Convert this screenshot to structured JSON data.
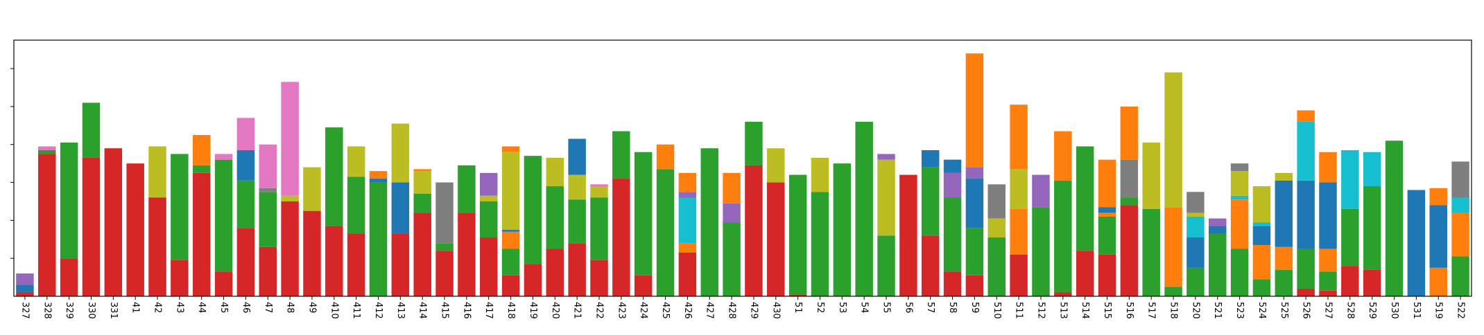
{
  "chart_data": {
    "type": "bar",
    "stacked": true,
    "categories": [
      "327",
      "328",
      "329",
      "330",
      "331",
      "41",
      "42",
      "43",
      "44",
      "45",
      "46",
      "47",
      "48",
      "49",
      "410",
      "411",
      "412",
      "413",
      "414",
      "415",
      "416",
      "417",
      "418",
      "419",
      "420",
      "421",
      "422",
      "423",
      "424",
      "425",
      "426",
      "427",
      "428",
      "429",
      "430",
      "51",
      "52",
      "53",
      "54",
      "55",
      "56",
      "57",
      "58",
      "59",
      "510",
      "511",
      "512",
      "513",
      "514",
      "515",
      "516",
      "517",
      "518",
      "520",
      "521",
      "523",
      "524",
      "525",
      "526",
      "527",
      "528",
      "529",
      "530",
      "531",
      "519",
      "522"
    ],
    "ylim": [
      0,
      135
    ],
    "grid": false,
    "colors": [
      "#d62728",
      "#2ca02c",
      "#1f77b4",
      "#ff7f0e",
      "#bcbd22",
      "#17becf",
      "#9467bd",
      "#e377c2",
      "#7f7f7f"
    ],
    "bars": [
      {
        "segments": [
          [
            2,
            "#d62728"
          ],
          [
            4,
            "#1f77b4"
          ],
          [
            6,
            "#9467bd"
          ]
        ]
      },
      {
        "segments": [
          [
            75,
            "#d62728"
          ],
          [
            2,
            "#2ca02c"
          ],
          [
            2,
            "#e377c2"
          ]
        ]
      },
      {
        "segments": [
          [
            20,
            "#d62728"
          ],
          [
            61,
            "#2ca02c"
          ]
        ]
      },
      {
        "segments": [
          [
            73,
            "#d62728"
          ],
          [
            29,
            "#2ca02c"
          ]
        ]
      },
      {
        "segments": [
          [
            78,
            "#d62728"
          ]
        ]
      },
      {
        "segments": [
          [
            70,
            "#d62728"
          ]
        ]
      },
      {
        "segments": [
          [
            52,
            "#d62728"
          ],
          [
            27,
            "#bcbd22"
          ]
        ]
      },
      {
        "segments": [
          [
            19,
            "#d62728"
          ],
          [
            56,
            "#2ca02c"
          ]
        ]
      },
      {
        "segments": [
          [
            65,
            "#d62728"
          ],
          [
            4,
            "#2ca02c"
          ],
          [
            16,
            "#ff7f0e"
          ]
        ]
      },
      {
        "segments": [
          [
            13,
            "#d62728"
          ],
          [
            59,
            "#2ca02c"
          ],
          [
            3,
            "#e377c2"
          ]
        ]
      },
      {
        "segments": [
          [
            36,
            "#d62728"
          ],
          [
            25,
            "#2ca02c"
          ],
          [
            16,
            "#1f77b4"
          ],
          [
            17,
            "#e377c2"
          ]
        ]
      },
      {
        "segments": [
          [
            26,
            "#d62728"
          ],
          [
            29,
            "#2ca02c"
          ],
          [
            2,
            "#7f7f7f"
          ],
          [
            23,
            "#e377c2"
          ]
        ]
      },
      {
        "segments": [
          [
            50,
            "#d62728"
          ],
          [
            3,
            "#bcbd22"
          ],
          [
            60,
            "#e377c2"
          ]
        ]
      },
      {
        "segments": [
          [
            45,
            "#d62728"
          ],
          [
            23,
            "#bcbd22"
          ]
        ]
      },
      {
        "segments": [
          [
            37,
            "#d62728"
          ],
          [
            52,
            "#2ca02c"
          ]
        ]
      },
      {
        "segments": [
          [
            33,
            "#d62728"
          ],
          [
            30,
            "#2ca02c"
          ],
          [
            16,
            "#bcbd22"
          ]
        ]
      },
      {
        "segments": [
          [
            60,
            "#2ca02c"
          ],
          [
            2,
            "#1f77b4"
          ],
          [
            4,
            "#ff7f0e"
          ]
        ]
      },
      {
        "segments": [
          [
            33,
            "#d62728"
          ],
          [
            27,
            "#1f77b4"
          ],
          [
            31,
            "#bcbd22"
          ]
        ]
      },
      {
        "segments": [
          [
            44,
            "#d62728"
          ],
          [
            10,
            "#2ca02c"
          ],
          [
            12,
            "#bcbd22"
          ],
          [
            1,
            "#ff7f0e"
          ]
        ]
      },
      {
        "segments": [
          [
            24,
            "#d62728"
          ],
          [
            4,
            "#2ca02c"
          ],
          [
            32,
            "#7f7f7f"
          ]
        ]
      },
      {
        "segments": [
          [
            44,
            "#d62728"
          ],
          [
            25,
            "#2ca02c"
          ]
        ]
      },
      {
        "segments": [
          [
            31,
            "#d62728"
          ],
          [
            19,
            "#2ca02c"
          ],
          [
            3,
            "#bcbd22"
          ],
          [
            12,
            "#9467bd"
          ]
        ]
      },
      {
        "segments": [
          [
            11,
            "#d62728"
          ],
          [
            14,
            "#2ca02c"
          ],
          [
            9,
            "#ff7f0e"
          ],
          [
            1,
            "#1f77b4"
          ],
          [
            41,
            "#bcbd22"
          ],
          [
            3,
            "#ff7f0e"
          ]
        ]
      },
      {
        "segments": [
          [
            17,
            "#d62728"
          ],
          [
            57,
            "#2ca02c"
          ]
        ]
      },
      {
        "segments": [
          [
            25,
            "#d62728"
          ],
          [
            33,
            "#2ca02c"
          ],
          [
            15,
            "#bcbd22"
          ]
        ]
      },
      {
        "segments": [
          [
            28,
            "#d62728"
          ],
          [
            23,
            "#2ca02c"
          ],
          [
            13,
            "#bcbd22"
          ],
          [
            19,
            "#1f77b4"
          ]
        ]
      },
      {
        "segments": [
          [
            19,
            "#d62728"
          ],
          [
            33,
            "#2ca02c"
          ],
          [
            6,
            "#bcbd22"
          ],
          [
            1,
            "#e377c2"
          ]
        ]
      },
      {
        "segments": [
          [
            62,
            "#d62728"
          ],
          [
            25,
            "#2ca02c"
          ]
        ]
      },
      {
        "segments": [
          [
            11,
            "#d62728"
          ],
          [
            65,
            "#2ca02c"
          ]
        ]
      },
      {
        "segments": [
          [
            67,
            "#2ca02c"
          ],
          [
            13,
            "#ff7f0e"
          ]
        ]
      },
      {
        "segments": [
          [
            23,
            "#d62728"
          ],
          [
            5,
            "#ff7f0e"
          ],
          [
            24,
            "#17becf"
          ],
          [
            3,
            "#9467bd"
          ],
          [
            10,
            "#ff7f0e"
          ]
        ]
      },
      {
        "segments": [
          [
            78,
            "#2ca02c"
          ]
        ]
      },
      {
        "segments": [
          [
            39,
            "#2ca02c"
          ],
          [
            10,
            "#9467bd"
          ],
          [
            16,
            "#ff7f0e"
          ]
        ]
      },
      {
        "segments": [
          [
            69,
            "#d62728"
          ],
          [
            23,
            "#2ca02c"
          ]
        ]
      },
      {
        "segments": [
          [
            60,
            "#d62728"
          ],
          [
            18,
            "#bcbd22"
          ]
        ]
      },
      {
        "segments": [
          [
            1,
            "#d62728"
          ],
          [
            63,
            "#2ca02c"
          ]
        ]
      },
      {
        "segments": [
          [
            55,
            "#2ca02c"
          ],
          [
            18,
            "#bcbd22"
          ]
        ]
      },
      {
        "segments": [
          [
            70,
            "#2ca02c"
          ]
        ]
      },
      {
        "segments": [
          [
            92,
            "#2ca02c"
          ]
        ]
      },
      {
        "segments": [
          [
            32,
            "#2ca02c"
          ],
          [
            40,
            "#bcbd22"
          ],
          [
            3,
            "#9467bd"
          ]
        ]
      },
      {
        "segments": [
          [
            64,
            "#d62728"
          ]
        ]
      },
      {
        "segments": [
          [
            32,
            "#d62728"
          ],
          [
            36,
            "#2ca02c"
          ],
          [
            9,
            "#1f77b4"
          ]
        ]
      },
      {
        "segments": [
          [
            13,
            "#d62728"
          ],
          [
            39,
            "#2ca02c"
          ],
          [
            13,
            "#9467bd"
          ],
          [
            7,
            "#1f77b4"
          ]
        ]
      },
      {
        "segments": [
          [
            11,
            "#d62728"
          ],
          [
            25,
            "#2ca02c"
          ],
          [
            26,
            "#1f77b4"
          ],
          [
            6,
            "#9467bd"
          ],
          [
            60,
            "#ff7f0e"
          ]
        ]
      },
      {
        "segments": [
          [
            31,
            "#2ca02c"
          ],
          [
            10,
            "#bcbd22"
          ],
          [
            18,
            "#7f7f7f"
          ]
        ]
      },
      {
        "segments": [
          [
            22,
            "#d62728"
          ],
          [
            24,
            "#ff7f0e"
          ],
          [
            21,
            "#bcbd22"
          ],
          [
            34,
            "#ff7f0e"
          ]
        ]
      },
      {
        "segments": [
          [
            47,
            "#2ca02c"
          ],
          [
            17,
            "#9467bd"
          ]
        ]
      },
      {
        "segments": [
          [
            2,
            "#d62728"
          ],
          [
            59,
            "#2ca02c"
          ],
          [
            26,
            "#ff7f0e"
          ]
        ]
      },
      {
        "segments": [
          [
            24,
            "#d62728"
          ],
          [
            55,
            "#2ca02c"
          ]
        ]
      },
      {
        "segments": [
          [
            22,
            "#d62728"
          ],
          [
            20,
            "#2ca02c"
          ],
          [
            2,
            "#ff7f0e"
          ],
          [
            3,
            "#1f77b4"
          ],
          [
            25,
            "#ff7f0e"
          ]
        ]
      },
      {
        "segments": [
          [
            48,
            "#d62728"
          ],
          [
            4,
            "#2ca02c"
          ],
          [
            20,
            "#7f7f7f"
          ],
          [
            28,
            "#ff7f0e"
          ]
        ]
      },
      {
        "segments": [
          [
            46,
            "#2ca02c"
          ],
          [
            35,
            "#bcbd22"
          ]
        ]
      },
      {
        "segments": [
          [
            5,
            "#2ca02c"
          ],
          [
            42,
            "#ff7f0e"
          ],
          [
            71,
            "#bcbd22"
          ]
        ]
      },
      {
        "segments": [
          [
            15,
            "#2ca02c"
          ],
          [
            16,
            "#1f77b4"
          ],
          [
            11,
            "#17becf"
          ],
          [
            2,
            "#bcbd22"
          ],
          [
            11,
            "#7f7f7f"
          ]
        ]
      },
      {
        "segments": [
          [
            33,
            "#2ca02c"
          ],
          [
            4,
            "#1f77b4"
          ],
          [
            4,
            "#9467bd"
          ]
        ]
      },
      {
        "segments": [
          [
            25,
            "#2ca02c"
          ],
          [
            26,
            "#ff7f0e"
          ],
          [
            2,
            "#17becf"
          ],
          [
            13,
            "#bcbd22"
          ],
          [
            4,
            "#7f7f7f"
          ]
        ]
      },
      {
        "segments": [
          [
            9,
            "#2ca02c"
          ],
          [
            18,
            "#ff7f0e"
          ],
          [
            10,
            "#1f77b4"
          ],
          [
            2,
            "#17becf"
          ],
          [
            19,
            "#bcbd22"
          ]
        ]
      },
      {
        "segments": [
          [
            14,
            "#2ca02c"
          ],
          [
            12,
            "#ff7f0e"
          ],
          [
            35,
            "#1f77b4"
          ],
          [
            4,
            "#bcbd22"
          ]
        ]
      },
      {
        "segments": [
          [
            4,
            "#d62728"
          ],
          [
            21,
            "#2ca02c"
          ],
          [
            36,
            "#1f77b4"
          ],
          [
            31,
            "#17becf"
          ],
          [
            6,
            "#ff7f0e"
          ]
        ]
      },
      {
        "segments": [
          [
            3,
            "#d62728"
          ],
          [
            10,
            "#2ca02c"
          ],
          [
            12,
            "#ff7f0e"
          ],
          [
            35,
            "#1f77b4"
          ],
          [
            16,
            "#ff7f0e"
          ]
        ]
      },
      {
        "segments": [
          [
            16,
            "#d62728"
          ],
          [
            30,
            "#2ca02c"
          ],
          [
            31,
            "#17becf"
          ]
        ]
      },
      {
        "segments": [
          [
            14,
            "#d62728"
          ],
          [
            44,
            "#2ca02c"
          ],
          [
            18,
            "#17becf"
          ]
        ]
      },
      {
        "segments": [
          [
            82,
            "#2ca02c"
          ]
        ]
      },
      {
        "segments": [
          [
            56,
            "#1f77b4"
          ]
        ]
      },
      {
        "segments": [
          [
            15,
            "#ff7f0e"
          ],
          [
            33,
            "#1f77b4"
          ],
          [
            9,
            "#ff7f0e"
          ]
        ]
      },
      {
        "segments": [
          [
            21,
            "#2ca02c"
          ],
          [
            23,
            "#ff7f0e"
          ],
          [
            8,
            "#17becf"
          ],
          [
            19,
            "#7f7f7f"
          ]
        ]
      }
    ]
  }
}
